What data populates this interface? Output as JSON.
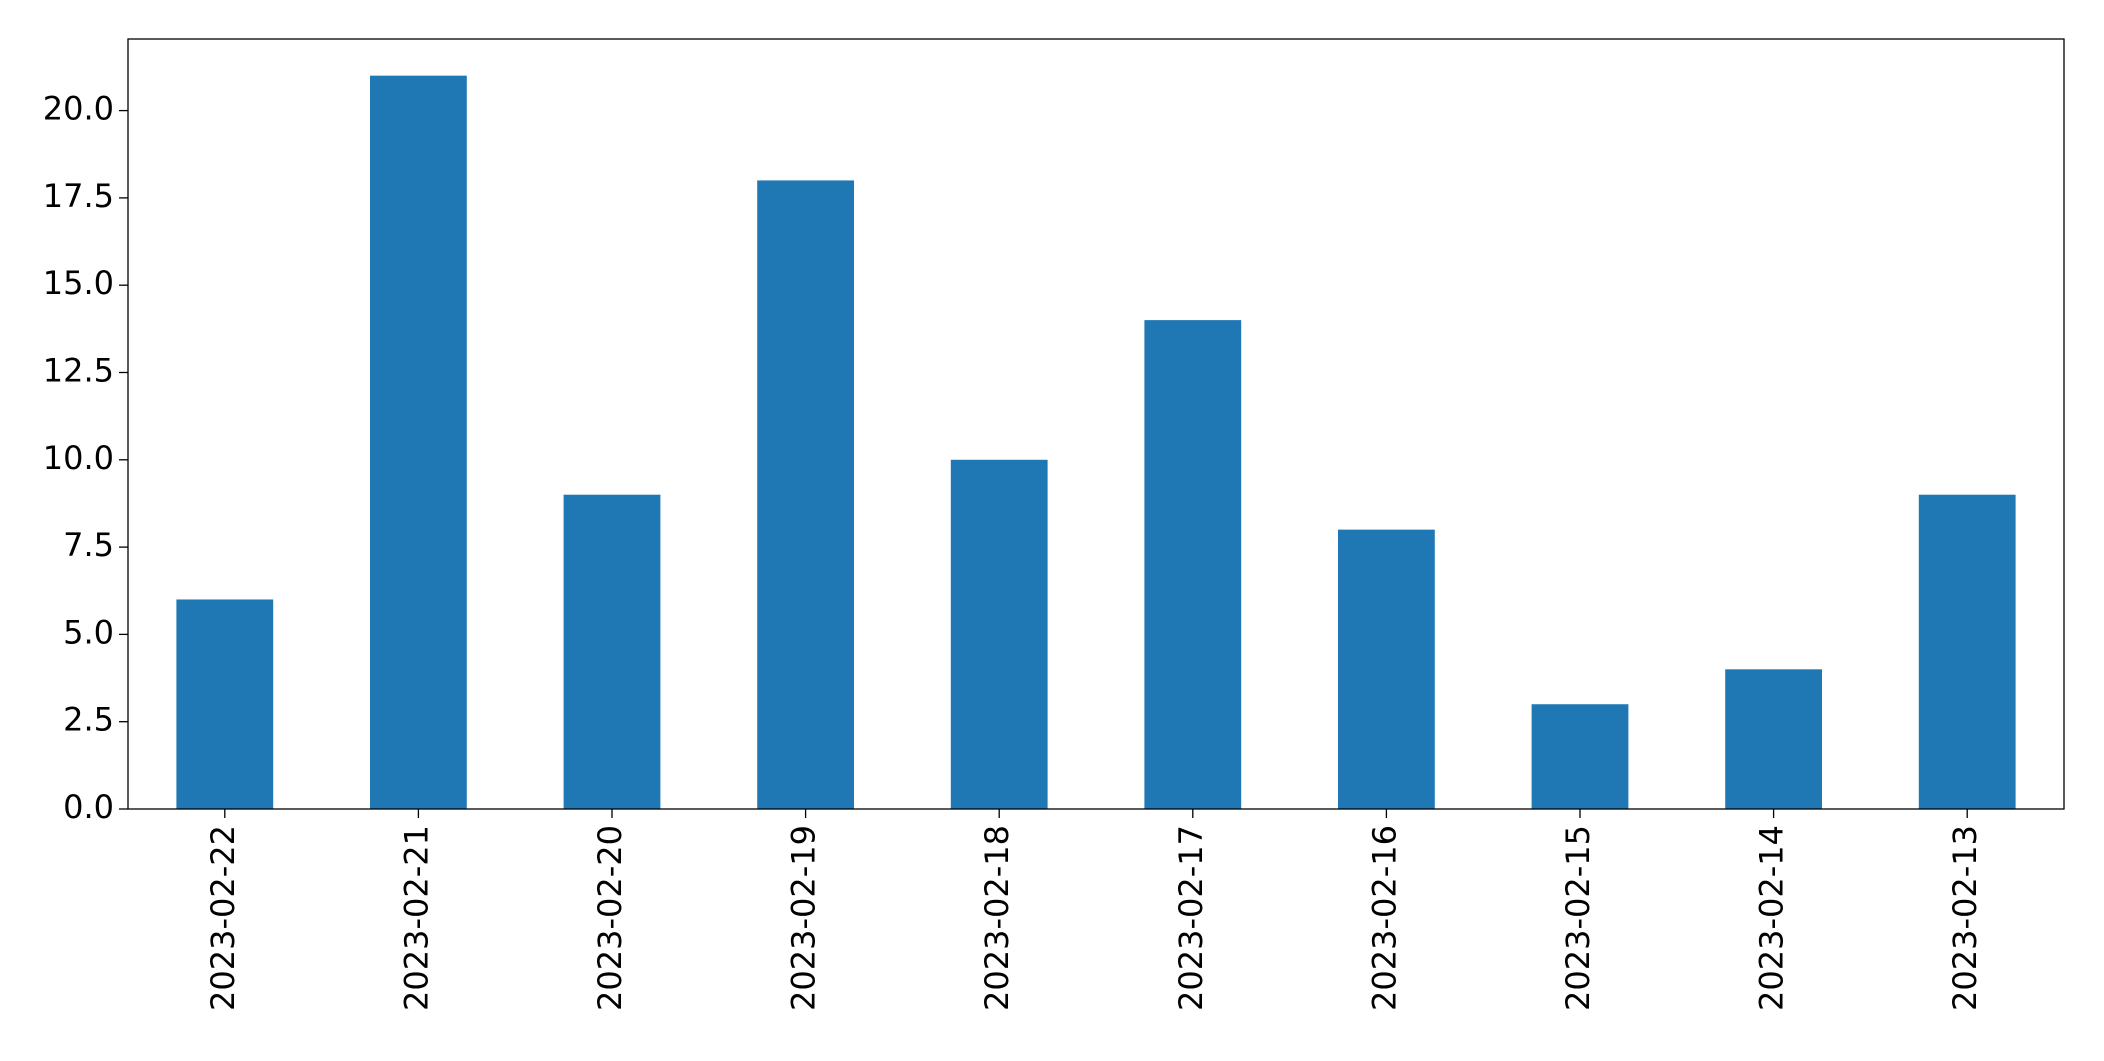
{
  "chart_data": {
    "type": "bar",
    "categories": [
      "2023-02-22",
      "2023-02-21",
      "2023-02-20",
      "2023-02-19",
      "2023-02-18",
      "2023-02-17",
      "2023-02-16",
      "2023-02-15",
      "2023-02-14",
      "2023-02-13"
    ],
    "values": [
      6,
      21,
      9,
      18,
      10,
      14,
      8,
      3,
      4,
      9
    ],
    "color": "#1f77b4",
    "ylim": [
      0,
      22.05
    ],
    "yticks": [
      {
        "value": 0,
        "label": "0.0"
      },
      {
        "value": 2.5,
        "label": "2.5"
      },
      {
        "value": 5,
        "label": "5.0"
      },
      {
        "value": 7.5,
        "label": "7.5"
      },
      {
        "value": 10,
        "label": "10.0"
      },
      {
        "value": 12.5,
        "label": "12.5"
      },
      {
        "value": 15,
        "label": "15.0"
      },
      {
        "value": 17.5,
        "label": "17.5"
      },
      {
        "value": 20,
        "label": "20.0"
      }
    ],
    "grid": false
  }
}
